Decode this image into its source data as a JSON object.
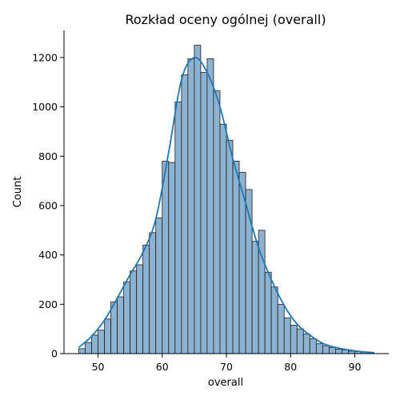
{
  "chart_data": {
    "type": "bar",
    "title": "Rozkład oceny ogólnej (overall)",
    "xlabel": "overall",
    "ylabel": "Count",
    "xlim": [
      44.7,
      95.3
    ],
    "ylim": [
      0,
      1310
    ],
    "xticks": [
      50,
      60,
      70,
      80,
      90
    ],
    "yticks": [
      0,
      200,
      400,
      600,
      800,
      1000,
      1200
    ],
    "bin_start": 47,
    "bin_width": 1,
    "values": [
      20,
      45,
      75,
      95,
      140,
      210,
      230,
      290,
      335,
      360,
      440,
      490,
      550,
      780,
      775,
      1020,
      1130,
      1195,
      1250,
      1140,
      1195,
      1065,
      930,
      865,
      780,
      735,
      665,
      455,
      500,
      330,
      270,
      200,
      145,
      115,
      100,
      80,
      60,
      40,
      32,
      25,
      18,
      15,
      10,
      8,
      6,
      4
    ],
    "kde": {
      "x": [
        47,
        49,
        51,
        53,
        55,
        57,
        59,
        61,
        63,
        65,
        67,
        69,
        71,
        73,
        75,
        77,
        79,
        81,
        83,
        85,
        87,
        89,
        91,
        93
      ],
      "y": [
        25,
        70,
        135,
        225,
        320,
        410,
        545,
        815,
        1110,
        1200,
        1140,
        1000,
        790,
        610,
        430,
        300,
        195,
        120,
        75,
        42,
        25,
        15,
        8,
        4
      ]
    },
    "colors": {
      "bar": "#8cb1d1",
      "bar_edge": "#1f1f1f",
      "kde": "#1f77b4"
    },
    "grid": false,
    "legend": false
  }
}
